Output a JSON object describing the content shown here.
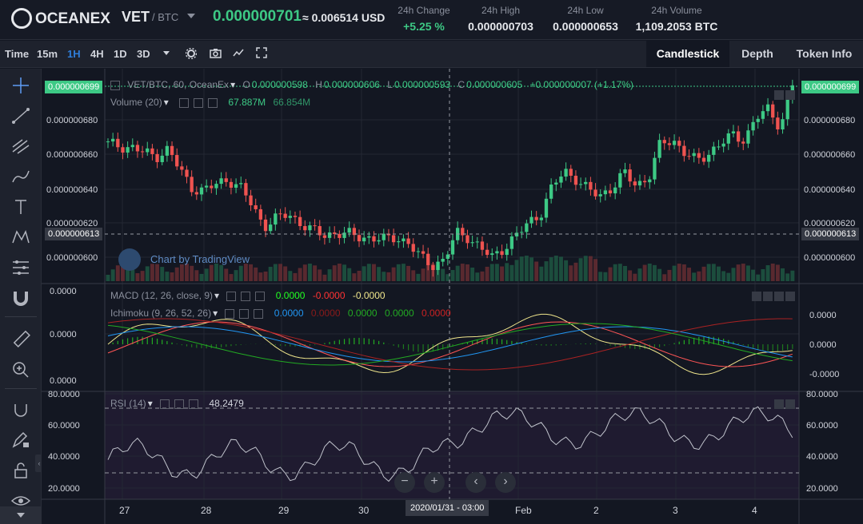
{
  "header": {
    "logo_text": "OCEANEX",
    "pair_base": "VET",
    "pair_quote": "/ BTC",
    "last_price": "0.000000701",
    "usd_price": "≈ 0.006514 USD",
    "stats": [
      {
        "label": "24h Change",
        "value": "+5.25 %",
        "color": "#3dc985"
      },
      {
        "label": "24h High",
        "value": "0.000000703",
        "color": "#e6e8ec"
      },
      {
        "label": "24h Low",
        "value": "0.000000653",
        "color": "#e6e8ec"
      },
      {
        "label": "24h Volume",
        "value": "1,109.2053 BTC",
        "color": "#e6e8ec"
      }
    ]
  },
  "toolbar": {
    "intervals": [
      "Time",
      "15m",
      "1H",
      "4H",
      "1D",
      "3D"
    ],
    "active_interval": "1H",
    "icons": [
      "chevron-down-icon",
      "gear-icon",
      "camera-icon",
      "chart-line-icon",
      "fullscreen-icon"
    ],
    "tabs": [
      "Candlestick",
      "Depth",
      "Token Info"
    ],
    "active_tab": "Candlestick"
  },
  "sidebar": {
    "icons": [
      "crosshair-icon",
      "trend-line-icon",
      "fib-icon",
      "brush-icon",
      "text-icon",
      "pattern-icon",
      "forecast-icon",
      "magnet-icon",
      "ruler-icon",
      "zoom-icon",
      "magnet-lock-icon",
      "pencil-lock-icon",
      "unlock-icon",
      "eye-icon"
    ]
  },
  "legend": {
    "symbol": "VET/BTC, 60, OceanEx",
    "o_label": "O",
    "o_value": "0.000000598",
    "h_label": "H",
    "h_value": "0.000000606",
    "l_label": "L",
    "l_value": "0.000000593",
    "c_label": "C",
    "c_value": "0.000000605",
    "change": "+0.000000007 (+1.17%)",
    "volume_label": "Volume (20)",
    "volume_v1": "67.887M",
    "volume_v2": "66.854M",
    "macd_label": "MACD (12, 26, close, 9)",
    "macd_v1": "0.0000",
    "macd_v2": "-0.0000",
    "macd_v3": "-0.0000",
    "ichimoku_label": "Ichimoku (9, 26, 52, 26)",
    "ichi_v1": "0.0000",
    "ichi_v2": "0.0000",
    "ichi_v3": "0.0000",
    "ichi_v4": "0.0000",
    "ichi_v5": "0.0000",
    "rsi_label": "RSI (14)",
    "rsi_value": "48.2479"
  },
  "watermark": "Chart by TradingView",
  "price_axis": {
    "labels": [
      "0.000000680",
      "0.000000660",
      "0.000000640",
      "0.000000620",
      "0.000000600"
    ],
    "current_price_tag": "0.000000699",
    "crosshair_price_tag": "0.000000613",
    "colors": {
      "up": "#3dc985",
      "down": "#ef5350",
      "tag": "#3dc985"
    }
  },
  "macd_axis": {
    "left_labels": [
      "0.0000",
      "0.0000",
      "0.0000"
    ],
    "right_labels": [
      "0.0000",
      "0.0000",
      "-0.0000"
    ]
  },
  "rsi_axis": {
    "labels": [
      "80.0000",
      "60.0000",
      "40.0000",
      "20.0000"
    ]
  },
  "time_axis": {
    "labels": [
      "27",
      "28",
      "29",
      "30",
      "Feb",
      "2",
      "3",
      "4"
    ],
    "crosshair_time": "2020/01/31 - 03:00"
  },
  "chart_data": {
    "type": "candlestick",
    "close_series": [
      6.65e-07,
      6.64e-07,
      6.63e-07,
      6.6e-07,
      6.58e-07,
      6.62e-07,
      6.5e-07,
      6.4e-07,
      6.38e-07,
      6.42e-07,
      6.45e-07,
      6.4e-07,
      6.3e-07,
      6.18e-07,
      6.22e-07,
      6.25e-07,
      6.2e-07,
      6.15e-07,
      6.13e-07,
      6.14e-07,
      6.13e-07,
      6.12e-07,
      6.11e-07,
      6.1e-07,
      6.12e-07,
      6.08e-07,
      6e-07,
      5.96e-07,
      5.98e-07,
      6.14e-07,
      6.12e-07,
      6.05e-07,
      6e-07,
      6.06e-07,
      6.12e-07,
      6.2e-07,
      6.25e-07,
      6.4e-07,
      6.5e-07,
      6.45e-07,
      6.38e-07,
      6.36e-07,
      6.4e-07,
      6.48e-07,
      6.42e-07,
      6.45e-07,
      6.65e-07,
      6.68e-07,
      6.6e-07,
      6.55e-07,
      6.6e-07,
      6.65e-07,
      6.7e-07,
      6.68e-07,
      6.8e-07,
      6.85e-07,
      6.75e-07,
      6.99e-07
    ]
  }
}
